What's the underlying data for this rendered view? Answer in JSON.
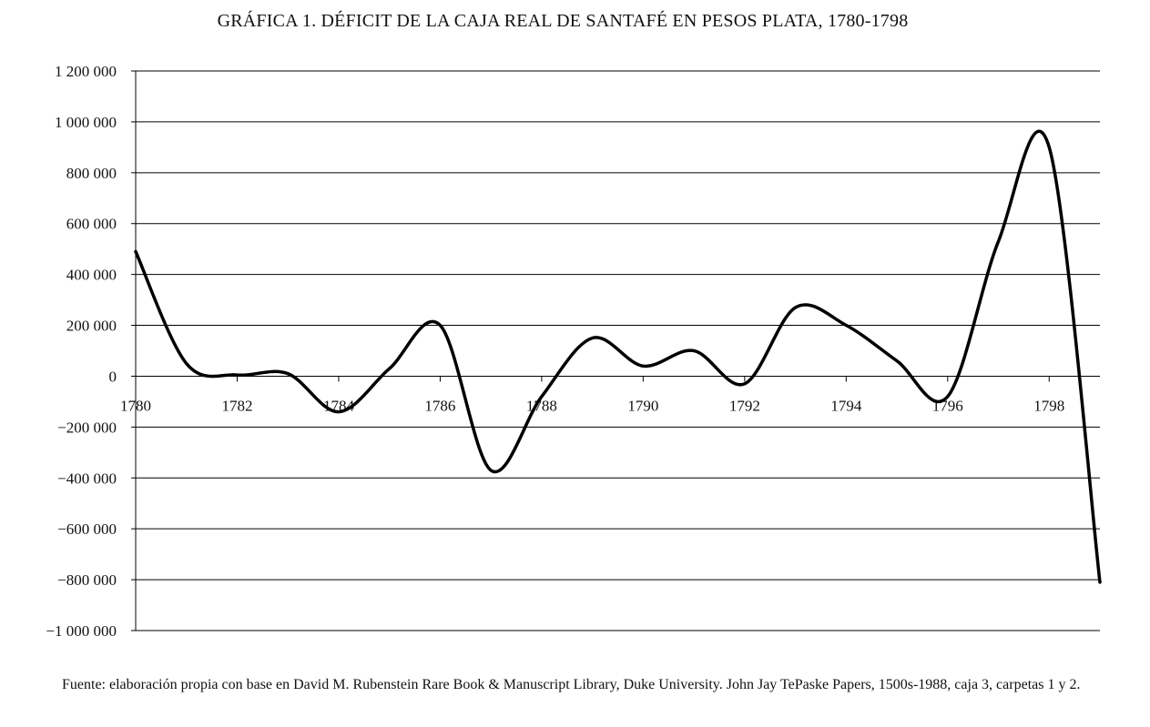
{
  "title": "GRÁFICA 1. DÉFICIT DE LA CAJA REAL DE SANTAFÉ EN PESOS PLATA, 1780-1798",
  "source": "Fuente: elaboración propia con base en David M. Rubenstein Rare Book & Manuscript Library, Duke University. John Jay TePaske Papers, 1500s-1988, caja 3, carpetas 1 y 2.",
  "chart_data": {
    "type": "line",
    "title": "GRÁFICA 1. DÉFICIT DE LA CAJA REAL DE SANTAFÉ EN PESOS PLATA, 1780-1798",
    "xlabel": "",
    "ylabel": "",
    "x": [
      1780,
      1781,
      1782,
      1783,
      1784,
      1785,
      1786,
      1787,
      1788,
      1789,
      1790,
      1791,
      1792,
      1793,
      1794,
      1795,
      1796,
      1797,
      1798,
      1799
    ],
    "series": [
      {
        "values": [
          490000,
          50000,
          5000,
          10000,
          -140000,
          30000,
          200000,
          -370000,
          -80000,
          150000,
          40000,
          100000,
          -30000,
          270000,
          200000,
          60000,
          -80000,
          530000,
          900000,
          -810000
        ]
      }
    ],
    "ylim": [
      -1000000,
      1200000
    ],
    "xlim": [
      1780,
      1799
    ],
    "yticks": [
      1200000,
      1000000,
      800000,
      600000,
      400000,
      200000,
      0,
      -200000,
      -400000,
      -600000,
      -800000,
      -1000000
    ],
    "ytick_labels": [
      "1 200 000",
      "1 000 000",
      "800 000",
      "600 000",
      "400 000",
      "200 000",
      "0",
      "−200 000",
      "−400 000",
      "−600 000",
      "−800 000",
      "−1 000 000"
    ],
    "xticks": [
      1780,
      1782,
      1784,
      1786,
      1788,
      1790,
      1792,
      1794,
      1796,
      1798
    ],
    "xtick_labels": [
      "1780",
      "1782",
      "1784",
      "1786",
      "1788",
      "1790",
      "1792",
      "1794",
      "1796",
      "1798"
    ],
    "grid": true,
    "line_color": "#000000"
  }
}
